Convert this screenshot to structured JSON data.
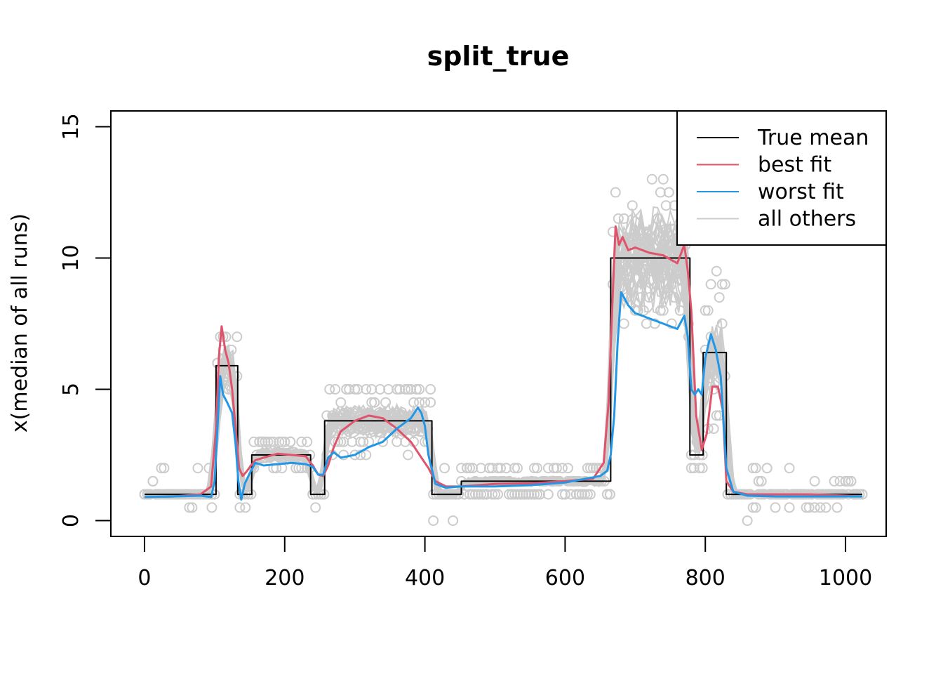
{
  "chart_data": {
    "type": "line",
    "title": "split_true",
    "xlabel": "",
    "ylabel": "x(median of all runs)",
    "xlim": [
      -48,
      1058
    ],
    "ylim": [
      -0.6,
      15.6
    ],
    "x_ticks": [
      0,
      200,
      400,
      600,
      800,
      1000
    ],
    "x_tick_labels": [
      "0",
      "200",
      "400",
      "600",
      "800",
      "1000"
    ],
    "y_ticks": [
      0,
      5,
      10,
      15
    ],
    "y_tick_labels": [
      "0",
      "5",
      "10",
      "15"
    ],
    "grid": false,
    "legend_position": "top-right",
    "legend": [
      {
        "label": "True mean",
        "color": "#000000"
      },
      {
        "label": "best fit",
        "color": "#DF536B"
      },
      {
        "label": "worst fit",
        "color": "#2297E6"
      },
      {
        "label": "all others",
        "color": "#CCCCCC"
      }
    ],
    "series": [
      {
        "name": "True mean",
        "color": "#000000",
        "step": true,
        "x": [
          0,
          102,
          102,
          133,
          133,
          153,
          153,
          237,
          237,
          257,
          257,
          410,
          410,
          452,
          452,
          665,
          665,
          778,
          778,
          797,
          797,
          830,
          830,
          1024
        ],
        "y": [
          1,
          1,
          5.9,
          5.9,
          1,
          1,
          2.5,
          2.5,
          1,
          1,
          3.8,
          3.8,
          1,
          1,
          1.5,
          1.5,
          10,
          10,
          2.5,
          2.5,
          6.4,
          6.4,
          1,
          1
        ]
      },
      {
        "name": "best fit",
        "color": "#DF536B",
        "x": [
          0,
          40,
          80,
          95,
          102,
          106,
          110,
          115,
          120,
          125,
          130,
          135,
          140,
          145,
          152,
          158,
          170,
          190,
          210,
          230,
          240,
          248,
          255,
          262,
          270,
          280,
          300,
          320,
          340,
          360,
          380,
          395,
          405,
          415,
          430,
          450,
          500,
          550,
          600,
          640,
          655,
          662,
          667,
          672,
          677,
          682,
          690,
          700,
          720,
          740,
          760,
          770,
          775,
          780,
          787,
          795,
          802,
          810,
          818,
          825,
          830,
          840,
          860,
          900,
          950,
          1000,
          1024
        ],
        "y": [
          0.9,
          0.92,
          1.0,
          1.3,
          3.5,
          6.2,
          7.4,
          6.5,
          6.0,
          5.0,
          3.5,
          2.0,
          1.7,
          1.85,
          2.1,
          2.3,
          2.4,
          2.55,
          2.5,
          2.45,
          2.1,
          1.75,
          1.7,
          2.1,
          2.8,
          3.4,
          3.8,
          4.0,
          3.9,
          3.5,
          3.0,
          2.4,
          2.0,
          1.5,
          1.3,
          1.3,
          1.4,
          1.42,
          1.5,
          1.6,
          2.2,
          4.5,
          8.0,
          11.2,
          10.5,
          10.8,
          10.3,
          10.4,
          10.2,
          10.1,
          9.8,
          10.5,
          9.5,
          8.0,
          4.0,
          2.7,
          3.3,
          5.1,
          5.1,
          4.2,
          1.5,
          1.1,
          1.0,
          1.0,
          1.0,
          0.95,
          0.92
        ]
      },
      {
        "name": "worst fit",
        "color": "#2297E6",
        "x": [
          0,
          40,
          80,
          95,
          100,
          104,
          108,
          112,
          118,
          125,
          130,
          134,
          138,
          143,
          150,
          158,
          170,
          190,
          210,
          230,
          240,
          248,
          255,
          262,
          270,
          280,
          300,
          320,
          340,
          360,
          380,
          390,
          395,
          400,
          405,
          415,
          430,
          450,
          500,
          550,
          600,
          630,
          650,
          660,
          665,
          670,
          675,
          680,
          690,
          700,
          720,
          740,
          760,
          770,
          775,
          780,
          785,
          790,
          795,
          800,
          808,
          815,
          822,
          830,
          840,
          860,
          900,
          950,
          1000,
          1024
        ],
        "y": [
          0.9,
          0.92,
          0.95,
          0.9,
          1.5,
          3.5,
          5.5,
          4.8,
          4.5,
          4.1,
          2.9,
          1.5,
          0.8,
          1.4,
          1.8,
          2.2,
          2.1,
          2.15,
          2.2,
          2.15,
          2.05,
          1.75,
          1.75,
          2.4,
          2.6,
          2.4,
          2.5,
          2.8,
          3.0,
          3.5,
          3.9,
          4.3,
          4.1,
          3.6,
          2.5,
          1.4,
          1.25,
          1.3,
          1.3,
          1.35,
          1.45,
          1.6,
          1.7,
          1.9,
          2.5,
          4.0,
          6.8,
          8.7,
          8.2,
          7.9,
          7.7,
          7.5,
          7.3,
          7.8,
          7.0,
          5.0,
          4.8,
          5.0,
          4.8,
          6.2,
          7.1,
          6.5,
          5.5,
          2.0,
          1.1,
          0.95,
          0.92,
          0.92,
          0.92,
          0.92
        ]
      }
    ],
    "others": {
      "name": "all others",
      "color": "#CCCCCC",
      "count": 40
    }
  }
}
